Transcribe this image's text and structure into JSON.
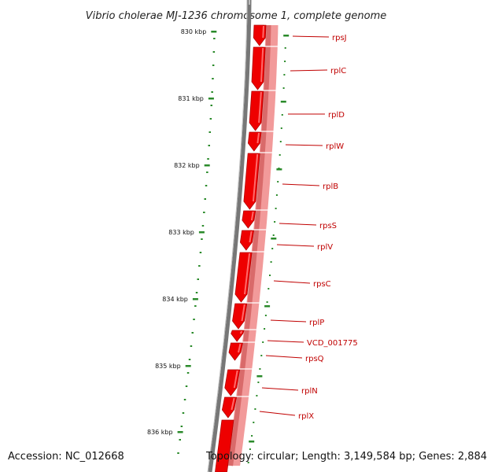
{
  "title": "Vibrio cholerae MJ-1236 chromosome 1, complete genome",
  "footer": {
    "accession": "Accession: NC_012668",
    "topology": "Topology: circular; Length: 3,149,584 bp; Genes: 2,884"
  },
  "ticks": [
    "830 kbp",
    "831 kbp",
    "832 kbp",
    "833 kbp",
    "834 kbp",
    "835 kbp",
    "836 kbp"
  ],
  "colors": {
    "feature": "#ee0000",
    "feature_shadow": "#b00000",
    "secondary_band": "#f29a9a",
    "backbone": "#777777",
    "tick": "#2a8a2a",
    "label": "#c00000"
  },
  "genes": [
    {
      "name": "rpsJ"
    },
    {
      "name": "rplC"
    },
    {
      "name": "rplD"
    },
    {
      "name": "rplW"
    },
    {
      "name": "rplB"
    },
    {
      "name": "rpsS"
    },
    {
      "name": "rplV"
    },
    {
      "name": "rpsC"
    },
    {
      "name": "rplP"
    },
    {
      "name": "VCD_001775"
    },
    {
      "name": "rpsQ"
    },
    {
      "name": "rplN"
    },
    {
      "name": "rplX"
    }
  ]
}
